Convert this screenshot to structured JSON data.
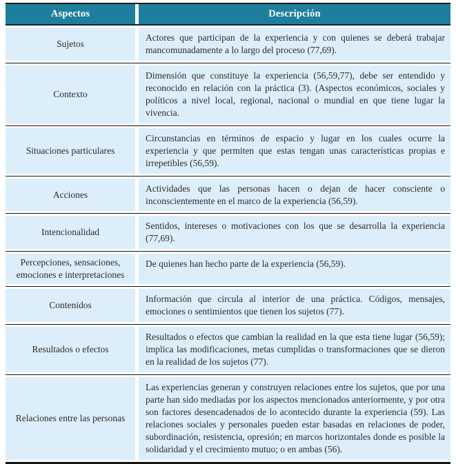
{
  "table": {
    "columns": [
      "Aspectos",
      "Descripción"
    ],
    "rows": [
      {
        "aspecto": "Sujetos",
        "descripcion": "Actores que participan de la experiencia y con quienes se deberá trabajar mancomunadamente a lo largo del proceso (77,69)."
      },
      {
        "aspecto": "Contexto",
        "descripcion": "Dimensión que constituye la experiencia (56,59,77), debe ser entendido y reconocido en relación con la práctica (3). (Aspectos económicos, sociales y políticos a nivel local, regional, nacional o mundial en que tiene lugar la vivencia."
      },
      {
        "aspecto": "Situaciones particulares",
        "descripcion": "Circunstancias en términos de espacio y lugar en los cuales ocurre la experiencia y que permiten que estas tengan unas características propias e irrepetibles (56,59)."
      },
      {
        "aspecto": "Acciones",
        "descripcion": "Actividades que las personas hacen o dejan de hacer consciente o inconscientemente en el marco de la experiencia (56,59)."
      },
      {
        "aspecto": "Intencionalidad",
        "descripcion": "Sentidos, intereses o motivaciones con los que se desarrolla la experiencia (77,69)."
      },
      {
        "aspecto": "Percepciones, sensaciones, emociones e interpretaciones",
        "descripcion": "De quienes han hecho parte de la experiencia (56,59)."
      },
      {
        "aspecto": "Contenidos",
        "descripcion": "Información que circula al interior de una práctica. Códigos, mensajes, emociones o sentimientos que tienen los sujetos (77)."
      },
      {
        "aspecto": "Resultados o efectos",
        "descripcion": "Resultados o efectos que cambian la realidad en la que esta tiene lugar (56,59); implica las modificaciones, metas cumplidas o transformaciones que se dieron en la realidad de los sujetos (77)."
      },
      {
        "aspecto": "Relaciones entre las personas",
        "descripcion": "Las experiencias generan y construyen relaciones entre los sujetos, que por una parte han sido mediadas por los aspectos mencionados anteriormente, y por otra son factores desencadenados de lo acontecido durante la experiencia (59). Las relaciones sociales y personales pueden estar basadas en relaciones de poder, subordinación, resistencia, opresión; en marcos horizontales donde es posible la solidaridad y el crecimiento mutuo; o en ambas (56)."
      }
    ]
  },
  "colors": {
    "header_bg": "#1e7f9d",
    "cell_bg": "#dceef9",
    "rule": "#141414",
    "text": "#2d2d2d",
    "header_text": "#ffffff"
  }
}
